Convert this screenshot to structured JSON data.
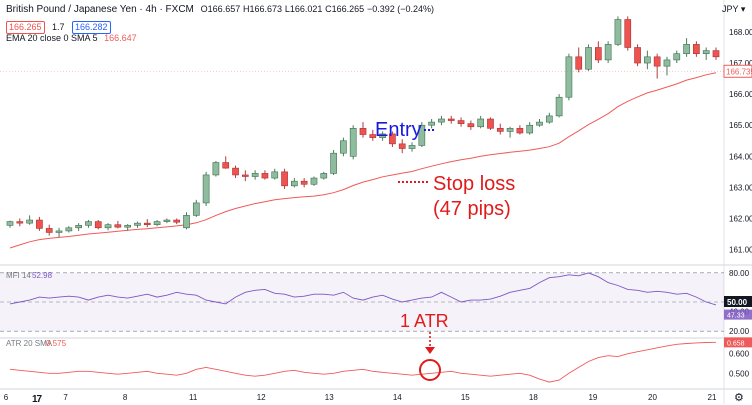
{
  "header": {
    "symbol_line": "British Pound / Japanese Yen · 4h · FXCM",
    "ohlc": {
      "o": "O166.657",
      "h": "H166.673",
      "l": "L166.021",
      "c": "C166.265",
      "chg": "−0.392 (−0.24%)"
    },
    "bid": "166.265",
    "spread": "1.7",
    "ask": "166.282",
    "currency": "JPY ▾",
    "ema_label": "EMA 20 close 0 SMA 5",
    "ema_value": "166.647"
  },
  "colors": {
    "up": "#26a69a",
    "down": "#ef5350",
    "up_fill": "#8fbc9f",
    "ema": "#f05a5a",
    "mfi": "#7e57c2",
    "annotation_blue": "#1a1adf",
    "annotation_red": "#e01b1b"
  },
  "chart_data": [
    {
      "type": "candlestick",
      "title": "British Pound / Japanese Yen · 4h · FXCM",
      "x_ticks": [
        "6",
        "7",
        "8",
        "11",
        "12",
        "13",
        "14",
        "15",
        "18",
        "19",
        "20",
        "21"
      ],
      "y_ticks": [
        "161.000",
        "162.000",
        "163.000",
        "164.000",
        "165.000",
        "166.000",
        "167.000",
        "168.000"
      ],
      "ylim": [
        160.6,
        168.7
      ],
      "last_price": "166.735",
      "series_ema": "EMA 20",
      "candles": [
        [
          161.78,
          161.93,
          161.7,
          161.9
        ],
        [
          161.9,
          162.0,
          161.75,
          161.85
        ],
        [
          161.85,
          162.1,
          161.8,
          161.95
        ],
        [
          161.95,
          162.05,
          161.6,
          161.68
        ],
        [
          161.68,
          161.8,
          161.45,
          161.55
        ],
        [
          161.55,
          161.7,
          161.4,
          161.6
        ],
        [
          161.6,
          161.75,
          161.55,
          161.7
        ],
        [
          161.7,
          161.85,
          161.6,
          161.78
        ],
        [
          161.78,
          161.95,
          161.7,
          161.9
        ],
        [
          161.9,
          161.95,
          161.65,
          161.7
        ],
        [
          161.7,
          161.85,
          161.62,
          161.8
        ],
        [
          161.8,
          161.92,
          161.68,
          161.72
        ],
        [
          161.72,
          161.82,
          161.6,
          161.78
        ],
        [
          161.78,
          161.9,
          161.7,
          161.85
        ],
        [
          161.85,
          161.98,
          161.72,
          161.8
        ],
        [
          161.8,
          161.95,
          161.75,
          161.9
        ],
        [
          161.9,
          162.0,
          161.85,
          161.95
        ],
        [
          161.95,
          162.0,
          161.82,
          161.88
        ],
        [
          161.7,
          162.2,
          161.65,
          162.1
        ],
        [
          162.1,
          162.6,
          162.05,
          162.5
        ],
        [
          162.5,
          163.5,
          162.4,
          163.4
        ],
        [
          163.4,
          163.85,
          163.35,
          163.8
        ],
        [
          163.8,
          164.0,
          163.6,
          163.62
        ],
        [
          163.62,
          163.7,
          163.3,
          163.4
        ],
        [
          163.4,
          163.55,
          163.2,
          163.35
        ],
        [
          163.35,
          163.55,
          163.25,
          163.45
        ],
        [
          163.45,
          163.55,
          163.25,
          163.3
        ],
        [
          163.3,
          163.6,
          163.25,
          163.5
        ],
        [
          163.5,
          163.6,
          162.95,
          163.05
        ],
        [
          163.05,
          163.3,
          163.0,
          163.2
        ],
        [
          163.2,
          163.3,
          163.0,
          163.1
        ],
        [
          163.1,
          163.35,
          163.05,
          163.3
        ],
        [
          163.3,
          163.5,
          163.25,
          163.45
        ],
        [
          163.45,
          164.2,
          163.4,
          164.1
        ],
        [
          164.1,
          164.6,
          164.0,
          164.5
        ],
        [
          164.0,
          165.0,
          163.9,
          164.9
        ],
        [
          164.9,
          165.1,
          164.6,
          164.7
        ],
        [
          164.7,
          164.85,
          164.5,
          164.6
        ],
        [
          164.6,
          164.8,
          164.5,
          164.72
        ],
        [
          164.72,
          164.8,
          164.3,
          164.4
        ],
        [
          164.4,
          164.55,
          164.1,
          164.25
        ],
        [
          164.25,
          164.45,
          164.15,
          164.35
        ],
        [
          164.35,
          165.1,
          164.3,
          165.0
        ],
        [
          165.0,
          165.2,
          164.9,
          165.1
        ],
        [
          165.1,
          165.3,
          165.0,
          165.2
        ],
        [
          165.2,
          165.3,
          165.05,
          165.15
        ],
        [
          165.15,
          165.25,
          164.95,
          165.05
        ],
        [
          165.05,
          165.15,
          164.85,
          164.95
        ],
        [
          164.95,
          165.3,
          164.9,
          165.2
        ],
        [
          165.2,
          165.25,
          164.85,
          164.9
        ],
        [
          164.9,
          165.05,
          164.7,
          164.8
        ],
        [
          164.8,
          164.95,
          164.6,
          164.9
        ],
        [
          164.9,
          165.0,
          164.7,
          164.75
        ],
        [
          164.75,
          165.1,
          164.7,
          165.0
        ],
        [
          165.0,
          165.2,
          164.95,
          165.1
        ],
        [
          165.1,
          165.4,
          165.05,
          165.3
        ],
        [
          165.3,
          166.0,
          165.25,
          165.9
        ],
        [
          165.9,
          167.3,
          165.8,
          167.2
        ],
        [
          167.2,
          167.5,
          166.7,
          166.8
        ],
        [
          166.8,
          167.6,
          166.75,
          167.5
        ],
        [
          167.5,
          167.7,
          167.0,
          167.1
        ],
        [
          167.1,
          167.7,
          167.0,
          167.6
        ],
        [
          167.6,
          168.5,
          167.55,
          168.4
        ],
        [
          168.4,
          168.5,
          167.4,
          167.5
        ],
        [
          167.5,
          167.6,
          166.9,
          167.0
        ],
        [
          167.0,
          167.4,
          166.8,
          167.2
        ],
        [
          167.2,
          167.3,
          166.5,
          166.9
        ],
        [
          166.9,
          167.2,
          166.6,
          167.1
        ],
        [
          167.1,
          167.4,
          167.0,
          167.3
        ],
        [
          167.3,
          167.8,
          167.2,
          167.6
        ],
        [
          167.6,
          167.7,
          167.2,
          167.3
        ],
        [
          167.3,
          167.5,
          167.1,
          167.4
        ],
        [
          167.4,
          167.5,
          167.1,
          167.2
        ]
      ],
      "ema": [
        161.05,
        161.15,
        161.25,
        161.32,
        161.36,
        161.39,
        161.42,
        161.46,
        161.5,
        161.53,
        161.56,
        161.59,
        161.62,
        161.65,
        161.67,
        161.7,
        161.73,
        161.76,
        161.8,
        161.86,
        161.96,
        162.1,
        162.22,
        162.32,
        162.4,
        162.48,
        162.54,
        162.6,
        162.64,
        162.67,
        162.7,
        162.72,
        162.76,
        162.83,
        162.93,
        163.06,
        163.17,
        163.25,
        163.34,
        163.4,
        163.46,
        163.51,
        163.6,
        163.68,
        163.76,
        163.83,
        163.89,
        163.94,
        164.0,
        164.05,
        164.09,
        164.13,
        164.16,
        164.2,
        164.25,
        164.31,
        164.42,
        164.63,
        164.82,
        165.02,
        165.19,
        165.37,
        165.6,
        165.77,
        165.91,
        166.04,
        166.13,
        166.23,
        166.33,
        166.45,
        166.53,
        166.62,
        166.69
      ]
    },
    {
      "type": "line",
      "title": "MFI 14",
      "value": "52.98",
      "y_ticks": [
        "20.00",
        "40.00",
        "80.00"
      ],
      "ylim": [
        15,
        85
      ],
      "last_badge": "50.00",
      "lower_badge": "47.33",
      "values": [
        48,
        50,
        52,
        55,
        54,
        55,
        56,
        55,
        52,
        55,
        57,
        55,
        54,
        56,
        58,
        55,
        57,
        60,
        58,
        57,
        52,
        50,
        48,
        55,
        60,
        62,
        63,
        59,
        58,
        55,
        56,
        58,
        58,
        57,
        60,
        54,
        52,
        55,
        57,
        53,
        50,
        52,
        54,
        55,
        60,
        55,
        50,
        52,
        52,
        53,
        56,
        60,
        62,
        64,
        70,
        75,
        76,
        78,
        77,
        80,
        76,
        70,
        67,
        63,
        62,
        60,
        61,
        60,
        58,
        59,
        55,
        50,
        47
      ]
    },
    {
      "type": "line",
      "title": "ATR 20 SMA",
      "value": "0.575",
      "y_ticks": [
        "0.500",
        "0.600"
      ],
      "ylim": [
        0.44,
        0.67
      ],
      "last_badge": "0.658",
      "values": [
        0.52,
        0.515,
        0.51,
        0.505,
        0.5,
        0.5,
        0.505,
        0.51,
        0.51,
        0.505,
        0.5,
        0.495,
        0.5,
        0.505,
        0.51,
        0.5,
        0.495,
        0.49,
        0.5,
        0.52,
        0.53,
        0.52,
        0.51,
        0.5,
        0.49,
        0.485,
        0.49,
        0.5,
        0.51,
        0.515,
        0.505,
        0.5,
        0.495,
        0.5,
        0.51,
        0.515,
        0.52,
        0.51,
        0.505,
        0.5,
        0.495,
        0.49,
        0.495,
        0.5,
        0.505,
        0.51,
        0.5,
        0.495,
        0.49,
        0.485,
        0.49,
        0.495,
        0.5,
        0.49,
        0.47,
        0.455,
        0.465,
        0.5,
        0.53,
        0.56,
        0.58,
        0.59,
        0.585,
        0.6,
        0.61,
        0.62,
        0.63,
        0.64,
        0.648,
        0.652,
        0.655,
        0.657,
        0.658
      ]
    }
  ],
  "annotations": {
    "entry": "Entry",
    "stop_loss": "Stop loss",
    "stop_pips": "(47 pips)",
    "atr_note": "1 ATR"
  }
}
